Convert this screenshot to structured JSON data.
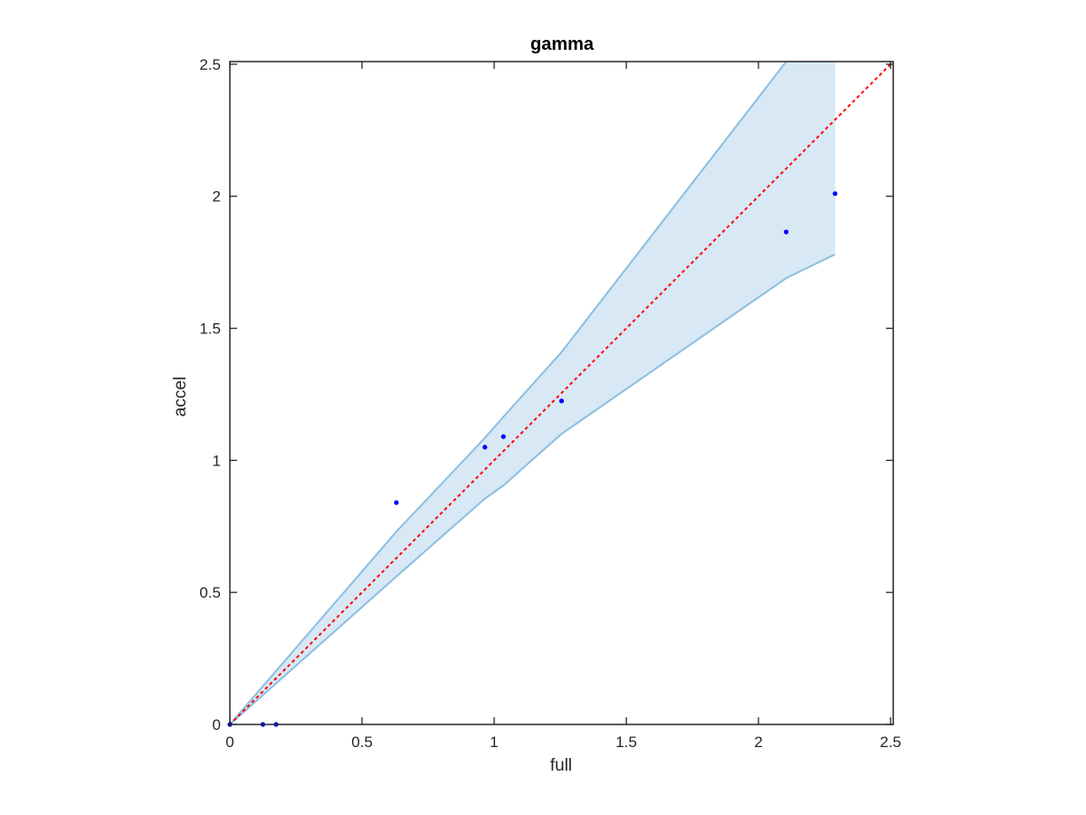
{
  "chart_data": {
    "type": "scatter",
    "title": "gamma",
    "xlabel": "full",
    "ylabel": "accel",
    "xlim": [
      0,
      2.51
    ],
    "ylim": [
      0,
      2.51
    ],
    "xticks": [
      0,
      0.5,
      1,
      1.5,
      2,
      2.5
    ],
    "yticks": [
      0,
      0.5,
      1,
      1.5,
      2,
      2.5
    ],
    "xtick_labels": [
      "0",
      "0.5",
      "1",
      "1.5",
      "2",
      "2.5"
    ],
    "ytick_labels": [
      "0",
      "0.5",
      "1",
      "1.5",
      "2",
      "2.5"
    ],
    "grid": false,
    "points": [
      {
        "x": 0.0,
        "y": 0.0
      },
      {
        "x": 0.125,
        "y": 0.0
      },
      {
        "x": 0.175,
        "y": 0.0
      },
      {
        "x": 0.63,
        "y": 0.84
      },
      {
        "x": 0.965,
        "y": 1.05
      },
      {
        "x": 1.035,
        "y": 1.09
      },
      {
        "x": 1.255,
        "y": 1.225
      },
      {
        "x": 2.105,
        "y": 1.865
      },
      {
        "x": 2.29,
        "y": 2.01
      }
    ],
    "band": {
      "upper": [
        [
          0.0,
          0.0
        ],
        [
          0.63,
          0.73
        ],
        [
          0.965,
          1.085
        ],
        [
          1.035,
          1.165
        ],
        [
          1.255,
          1.41
        ],
        [
          2.105,
          2.51
        ],
        [
          2.29,
          2.51
        ]
      ],
      "lower": [
        [
          0.0,
          0.0
        ],
        [
          0.63,
          0.56
        ],
        [
          0.965,
          0.855
        ],
        [
          1.035,
          0.905
        ],
        [
          1.255,
          1.1
        ],
        [
          2.105,
          1.69
        ],
        [
          2.29,
          1.78
        ]
      ]
    },
    "reference_line": {
      "from": [
        0,
        0
      ],
      "to": [
        2.51,
        2.51
      ],
      "style": "dotted"
    },
    "colors": {
      "points": "#0000ff",
      "band_fill": "#d8e8f4",
      "band_edge": "#8cbfe0",
      "reference": "#ff0000",
      "axes": "#262626"
    }
  }
}
